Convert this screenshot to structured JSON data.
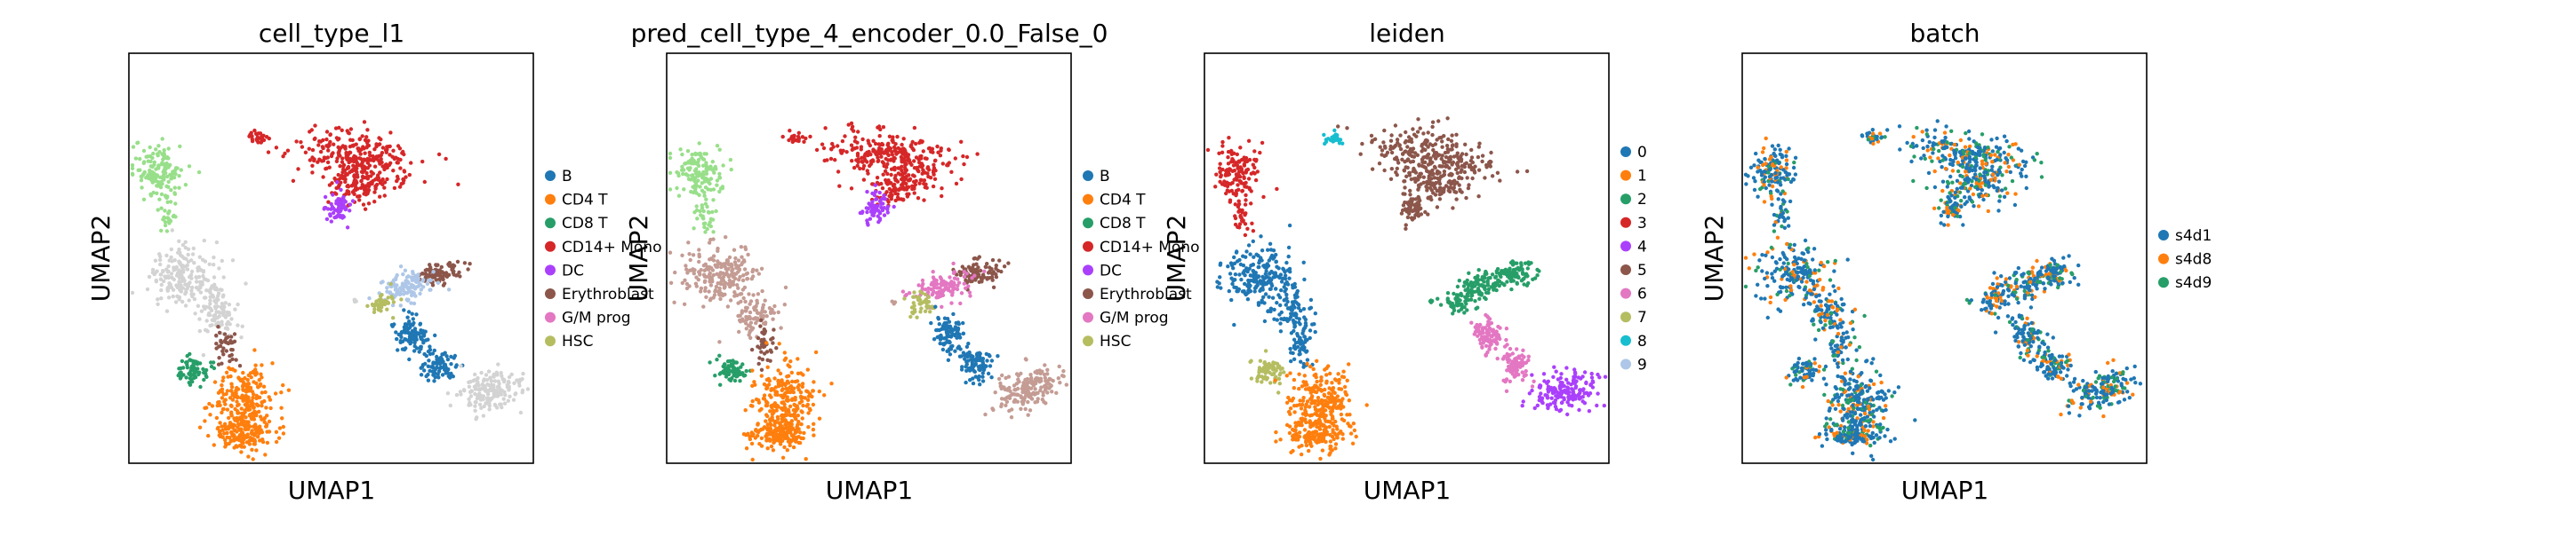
{
  "figure": {
    "panels": [
      {
        "title": "cell_type_l1",
        "xlabel": "UMAP1",
        "ylabel": "UMAP2",
        "legend": [
          {
            "label": "B",
            "color": "#1f77b4"
          },
          {
            "label": "CD4 T",
            "color": "#ff7f0e"
          },
          {
            "label": "CD8 T",
            "color": "#279e68"
          },
          {
            "label": "CD14+ Mono",
            "color": "#d62728"
          },
          {
            "label": "DC",
            "color": "#aa40fc"
          },
          {
            "label": "Erythroblast",
            "color": "#8c564b"
          },
          {
            "label": "G/M prog",
            "color": "#e377c2"
          },
          {
            "label": "HSC",
            "color": "#b5bd61"
          }
        ]
      },
      {
        "title": "pred_cell_type_4_encoder_0.0_False_0",
        "xlabel": "UMAP1",
        "ylabel": "UMAP2",
        "legend": [
          {
            "label": "B",
            "color": "#1f77b4"
          },
          {
            "label": "CD4 T",
            "color": "#ff7f0e"
          },
          {
            "label": "CD8 T",
            "color": "#279e68"
          },
          {
            "label": "CD14+ Mono",
            "color": "#d62728"
          },
          {
            "label": "DC",
            "color": "#aa40fc"
          },
          {
            "label": "Erythroblast",
            "color": "#8c564b"
          },
          {
            "label": "G/M prog",
            "color": "#e377c2"
          },
          {
            "label": "HSC",
            "color": "#b5bd61"
          }
        ]
      },
      {
        "title": "leiden",
        "xlabel": "UMAP1",
        "ylabel": "UMAP2",
        "legend": [
          {
            "label": "0",
            "color": "#1f77b4"
          },
          {
            "label": "1",
            "color": "#ff7f0e"
          },
          {
            "label": "2",
            "color": "#279e68"
          },
          {
            "label": "3",
            "color": "#d62728"
          },
          {
            "label": "4",
            "color": "#aa40fc"
          },
          {
            "label": "5",
            "color": "#8c564b"
          },
          {
            "label": "6",
            "color": "#e377c2"
          },
          {
            "label": "7",
            "color": "#b5bd61"
          },
          {
            "label": "8",
            "color": "#17becf"
          },
          {
            "label": "9",
            "color": "#aec7e8"
          }
        ]
      },
      {
        "title": "batch",
        "xlabel": "UMAP1",
        "ylabel": "UMAP2",
        "legend": [
          {
            "label": "s4d1",
            "color": "#1f77b4"
          },
          {
            "label": "s4d8",
            "color": "#ff7f0e"
          },
          {
            "label": "s4d9",
            "color": "#279e68"
          }
        ]
      }
    ]
  },
  "chart_data": [
    {
      "type": "scatter",
      "title": "cell_type_l1",
      "xlabel": "UMAP1",
      "ylabel": "UMAP2",
      "grid": false,
      "legend_position": "right",
      "series": [
        {
          "name": "B",
          "color": "#1f77b4"
        },
        {
          "name": "CD4 T",
          "color": "#ff7f0e"
        },
        {
          "name": "CD8 T",
          "color": "#279e68"
        },
        {
          "name": "CD14+ Mono",
          "color": "#d62728"
        },
        {
          "name": "DC",
          "color": "#aa40fc"
        },
        {
          "name": "Erythroblast",
          "color": "#8c564b"
        },
        {
          "name": "G/M prog",
          "color": "#e377c2"
        },
        {
          "name": "HSC",
          "color": "#b5bd61"
        }
      ]
    },
    {
      "type": "scatter",
      "title": "pred_cell_type_4_encoder_0.0_False_0",
      "xlabel": "UMAP1",
      "ylabel": "UMAP2",
      "grid": false,
      "legend_position": "right",
      "series": [
        {
          "name": "B",
          "color": "#1f77b4"
        },
        {
          "name": "CD4 T",
          "color": "#ff7f0e"
        },
        {
          "name": "CD8 T",
          "color": "#279e68"
        },
        {
          "name": "CD14+ Mono",
          "color": "#d62728"
        },
        {
          "name": "DC",
          "color": "#aa40fc"
        },
        {
          "name": "Erythroblast",
          "color": "#8c564b"
        },
        {
          "name": "G/M prog",
          "color": "#e377c2"
        },
        {
          "name": "HSC",
          "color": "#b5bd61"
        }
      ]
    },
    {
      "type": "scatter",
      "title": "leiden",
      "xlabel": "UMAP1",
      "ylabel": "UMAP2",
      "grid": false,
      "legend_position": "right",
      "series": [
        {
          "name": "0",
          "color": "#1f77b4"
        },
        {
          "name": "1",
          "color": "#ff7f0e"
        },
        {
          "name": "2",
          "color": "#279e68"
        },
        {
          "name": "3",
          "color": "#d62728"
        },
        {
          "name": "4",
          "color": "#aa40fc"
        },
        {
          "name": "5",
          "color": "#8c564b"
        },
        {
          "name": "6",
          "color": "#e377c2"
        },
        {
          "name": "7",
          "color": "#b5bd61"
        },
        {
          "name": "8",
          "color": "#17becf"
        },
        {
          "name": "9",
          "color": "#aec7e8"
        }
      ]
    },
    {
      "type": "scatter",
      "title": "batch",
      "xlabel": "UMAP1",
      "ylabel": "UMAP2",
      "grid": false,
      "legend_position": "right",
      "series": [
        {
          "name": "s4d1",
          "color": "#1f77b4"
        },
        {
          "name": "s4d8",
          "color": "#ff7f0e"
        },
        {
          "name": "s4d9",
          "color": "#279e68"
        }
      ]
    }
  ]
}
